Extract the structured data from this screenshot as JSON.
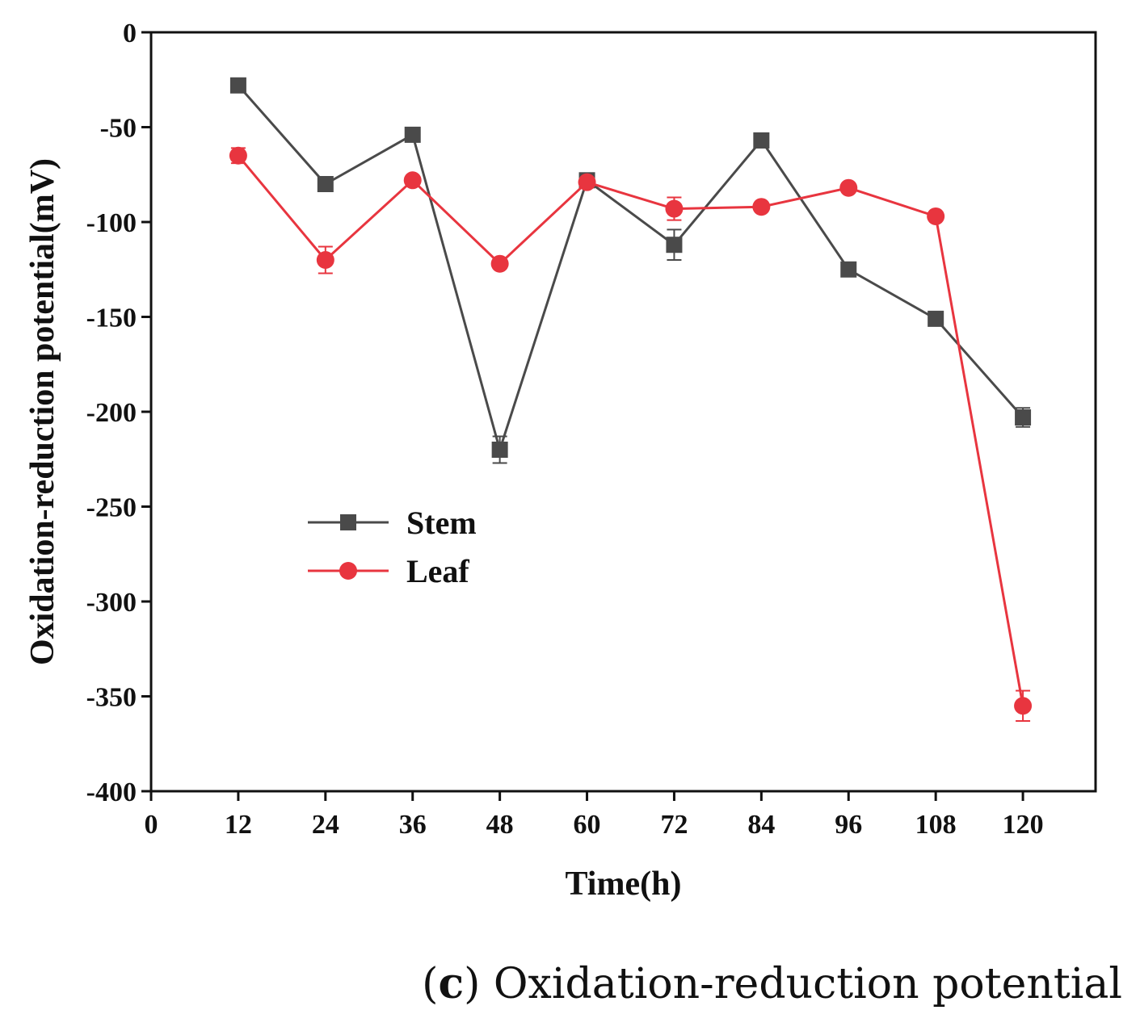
{
  "chart_data": {
    "type": "line",
    "title": "",
    "xlabel": "Time(h)",
    "ylabel": "Oxidation-reduction potential(mV)",
    "xlim": [
      0,
      130
    ],
    "ylim": [
      -400,
      0
    ],
    "xticks": [
      0,
      12,
      24,
      36,
      48,
      60,
      72,
      84,
      96,
      108,
      120
    ],
    "yticks": [
      0,
      -50,
      -100,
      -150,
      -200,
      -250,
      -300,
      -350,
      -400
    ],
    "grid": false,
    "legend_position": "center-left",
    "x": [
      12,
      24,
      36,
      48,
      60,
      72,
      84,
      96,
      108,
      120
    ],
    "series": [
      {
        "name": "Stem",
        "color": "#4a4a4a",
        "marker": "square",
        "values": [
          -28,
          -80,
          -54,
          -220,
          -78,
          -112,
          -57,
          -125,
          -151,
          -203
        ],
        "errors": [
          2,
          2,
          2,
          7,
          2,
          8,
          2,
          2,
          2,
          5
        ]
      },
      {
        "name": "Leaf",
        "color": "#e8353f",
        "marker": "circle",
        "values": [
          -65,
          -120,
          -78,
          -122,
          -79,
          -93,
          -92,
          -82,
          -97,
          -355
        ],
        "errors": [
          4,
          7,
          2,
          2,
          2,
          6,
          2,
          2,
          2,
          8
        ]
      }
    ]
  },
  "caption": {
    "open": "(",
    "letter": "c",
    "text": ") Oxidation-reduction potential"
  }
}
